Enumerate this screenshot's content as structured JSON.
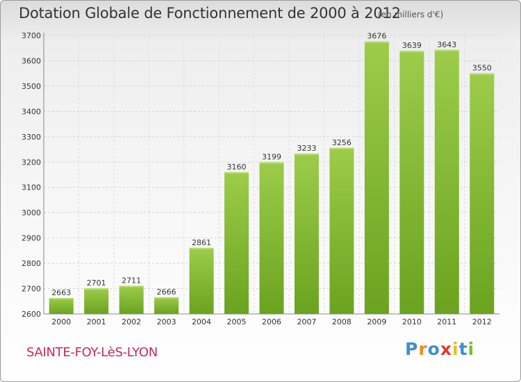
{
  "chart_data": {
    "type": "bar",
    "title": "Dotation Globale de Fonctionnement de 2000 à 2012",
    "subtitle": "(en milliers d'€)",
    "categories": [
      "2000",
      "2001",
      "2002",
      "2003",
      "2004",
      "2005",
      "2006",
      "2007",
      "2008",
      "2009",
      "2010",
      "2011",
      "2012"
    ],
    "values": [
      2663,
      2701,
      2711,
      2666,
      2861,
      3160,
      3199,
      3233,
      3256,
      3676,
      3639,
      3643,
      3550
    ],
    "data_labels": [
      "2663",
      "2701",
      "2711",
      "2666",
      "2861",
      "3160",
      "3199",
      "3233",
      "3256",
      "3676",
      "3639",
      "3643",
      "3550"
    ],
    "ylim": [
      2600,
      3700
    ],
    "yticks": [
      2600,
      2700,
      2800,
      2900,
      3000,
      3100,
      3200,
      3300,
      3400,
      3500,
      3600,
      3700
    ],
    "ytick_labels": [
      "2600",
      "2700",
      "2800",
      "2900",
      "3000",
      "3100",
      "3200",
      "3300",
      "3400",
      "3500",
      "3600",
      "3700"
    ],
    "grid": true,
    "bar_color_top": "#9ccc4a",
    "bar_color_bottom": "#6aa31f"
  },
  "footer": {
    "commune": "SAINTE-FOY-LèS-LYON",
    "commune_color": "#c8295b",
    "logo_letters": [
      "P",
      "r",
      "o",
      "x",
      "i",
      "t",
      "i"
    ],
    "logo_colors": [
      "#3b8fd6",
      "#f08a1c",
      "#3b8fd6",
      "#e23a2f",
      "#f2b81c",
      "#3b8fd6",
      "#7cbc2a"
    ]
  }
}
